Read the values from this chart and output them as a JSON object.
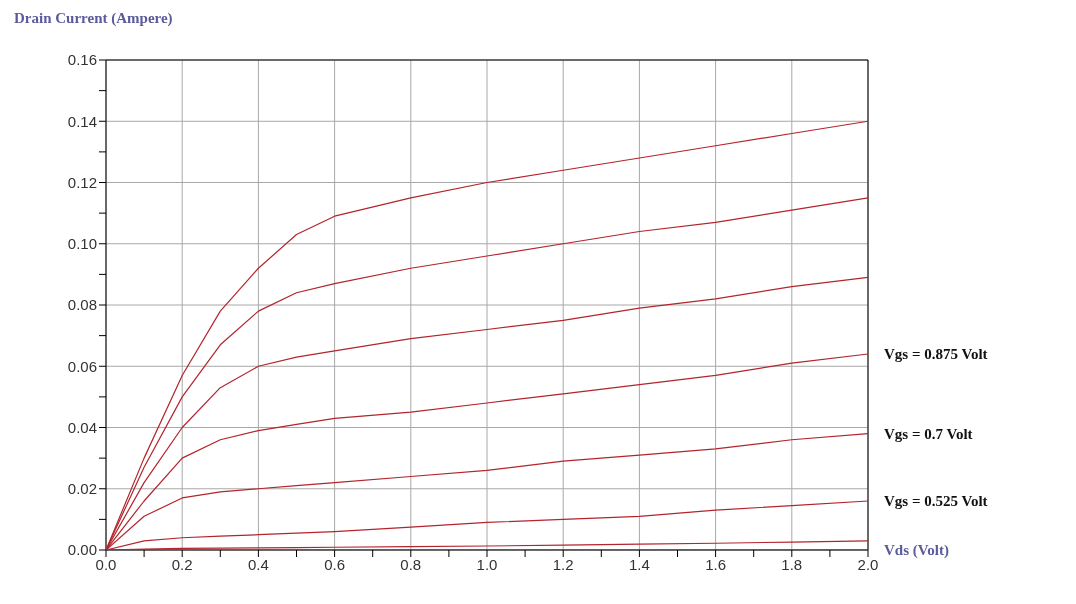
{
  "chart_data": {
    "type": "line",
    "ylabel": "Drain Current (Ampere)",
    "xlabel": "Vds  (Volt)",
    "xlim": [
      0,
      2
    ],
    "ylim": [
      0,
      0.16
    ],
    "xticks": [
      {
        "value": 0,
        "label": "0.0"
      },
      {
        "value": 0.1,
        "label": null
      },
      {
        "value": 0.2,
        "label": "0.2"
      },
      {
        "value": 0.3,
        "label": null
      },
      {
        "value": 0.4,
        "label": "0.4"
      },
      {
        "value": 0.5,
        "label": null
      },
      {
        "value": 0.6,
        "label": "0.6"
      },
      {
        "value": 0.7,
        "label": null
      },
      {
        "value": 0.8,
        "label": "0.8"
      },
      {
        "value": 0.9,
        "label": null
      },
      {
        "value": 1,
        "label": "1.0"
      },
      {
        "value": 1.1,
        "label": null
      },
      {
        "value": 1.2,
        "label": "1.2"
      },
      {
        "value": 1.3,
        "label": null
      },
      {
        "value": 1.4,
        "label": "1.4"
      },
      {
        "value": 1.5,
        "label": null
      },
      {
        "value": 1.6,
        "label": "1.6"
      },
      {
        "value": 1.7,
        "label": null
      },
      {
        "value": 1.8,
        "label": "1.8"
      },
      {
        "value": 1.9,
        "label": null
      },
      {
        "value": 2,
        "label": "2.0"
      }
    ],
    "yticks": [
      {
        "value": 0,
        "label": "0.00"
      },
      {
        "value": 0.01,
        "label": null
      },
      {
        "value": 0.02,
        "label": "0.02"
      },
      {
        "value": 0.03,
        "label": null
      },
      {
        "value": 0.04,
        "label": "0.04"
      },
      {
        "value": 0.05,
        "label": null
      },
      {
        "value": 0.06,
        "label": "0.06"
      },
      {
        "value": 0.07,
        "label": null
      },
      {
        "value": 0.08,
        "label": "0.08"
      },
      {
        "value": 0.09,
        "label": null
      },
      {
        "value": 0.1,
        "label": "0.10"
      },
      {
        "value": 0.11,
        "label": null
      },
      {
        "value": 0.12,
        "label": "0.12"
      },
      {
        "value": 0.13,
        "label": null
      },
      {
        "value": 0.14,
        "label": "0.14"
      },
      {
        "value": 0.15,
        "label": null
      },
      {
        "value": 0.16,
        "label": "0.16"
      }
    ],
    "grid": true,
    "marker": "none",
    "line_style": "solid",
    "x": [
      0,
      0.1,
      0.2,
      0.3,
      0.4,
      0.5,
      0.6,
      0.8,
      1.0,
      1.2,
      1.4,
      1.6,
      1.8,
      2.0
    ],
    "series": [
      {
        "color": "#b3242c",
        "values": [
          0,
          0.03,
          0.057,
          0.078,
          0.092,
          0.103,
          0.109,
          0.115,
          0.12,
          0.124,
          0.128,
          0.132,
          0.136,
          0.14
        ]
      },
      {
        "color": "#b3242c",
        "values": [
          0,
          0.027,
          0.05,
          0.067,
          0.078,
          0.084,
          0.087,
          0.092,
          0.096,
          0.1,
          0.104,
          0.107,
          0.111,
          0.115
        ]
      },
      {
        "color": "#b3242c",
        "values": [
          0,
          0.022,
          0.04,
          0.053,
          0.06,
          0.063,
          0.065,
          0.069,
          0.072,
          0.075,
          0.079,
          0.082,
          0.086,
          0.089
        ]
      },
      {
        "name": "Vgs = 0.875 Volt",
        "color": "#b3242c",
        "values": [
          0,
          0.016,
          0.03,
          0.036,
          0.039,
          0.041,
          0.043,
          0.045,
          0.048,
          0.051,
          0.054,
          0.057,
          0.061,
          0.064
        ]
      },
      {
        "name": "Vgs = 0.7 Volt",
        "color": "#b3242c",
        "values": [
          0,
          0.011,
          0.017,
          0.019,
          0.02,
          0.021,
          0.022,
          0.024,
          0.026,
          0.029,
          0.031,
          0.033,
          0.036,
          0.038
        ]
      },
      {
        "name": "Vgs = 0.525 Volt",
        "color": "#b3242c",
        "values": [
          0,
          0.003,
          0.004,
          0.0045,
          0.005,
          0.0055,
          0.006,
          0.0075,
          0.009,
          0.01,
          0.011,
          0.013,
          0.0145,
          0.016
        ]
      },
      {
        "color": "#b3242c",
        "values": [
          0,
          0.0003,
          0.0005,
          0.0006,
          0.0007,
          0.0008,
          0.0009,
          0.0011,
          0.0013,
          0.0016,
          0.0019,
          0.0022,
          0.0026,
          0.003
        ]
      },
      {
        "color": "#b3242c",
        "values": [
          0,
          0,
          0,
          0,
          0,
          0,
          0,
          0,
          0,
          0,
          0,
          0,
          0,
          0
        ]
      }
    ]
  }
}
